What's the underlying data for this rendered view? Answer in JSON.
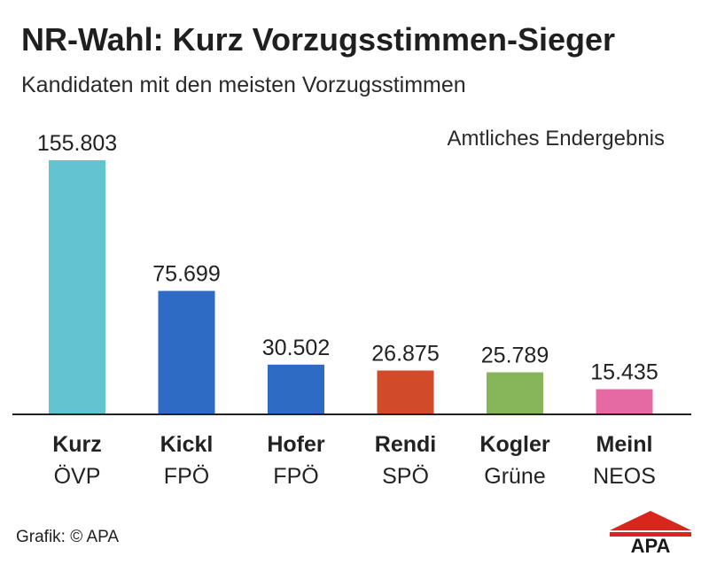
{
  "header": {
    "title": "NR-Wahl: Kurz Vorzugsstimmen-Sieger",
    "subtitle": "Kandidaten mit den meisten Vorzugsstimmen",
    "note": "Amtliches Endergebnis"
  },
  "footer": {
    "credit": "Grafik: © APA",
    "logo_text": "APA"
  },
  "colors": {
    "logo_red": "#d9261c",
    "logo_text": "#1a1a1a",
    "baseline": "#222222"
  },
  "chart_data": {
    "type": "bar",
    "title": "NR-Wahl: Kurz Vorzugsstimmen-Sieger",
    "subtitle": "Kandidaten mit den meisten Vorzugsstimmen",
    "categories": [
      "Kurz",
      "Kickl",
      "Hofer",
      "Rendi",
      "Kogler",
      "Meinl"
    ],
    "parties": [
      "ÖVP",
      "FPÖ",
      "FPÖ",
      "SPÖ",
      "Grüne",
      "NEOS"
    ],
    "values": [
      155803,
      75699,
      30502,
      26875,
      25789,
      15435
    ],
    "value_labels": [
      "155.803",
      "75.699",
      "30.502",
      "26.875",
      "25.789",
      "15.435"
    ],
    "colors": [
      "#63c4d1",
      "#2d6bc4",
      "#2d6bc4",
      "#d14a2a",
      "#87b55a",
      "#e569a3"
    ],
    "xlabel": "",
    "ylabel": "",
    "ylim": [
      0,
      155803
    ],
    "grid": false,
    "legend": "none"
  }
}
